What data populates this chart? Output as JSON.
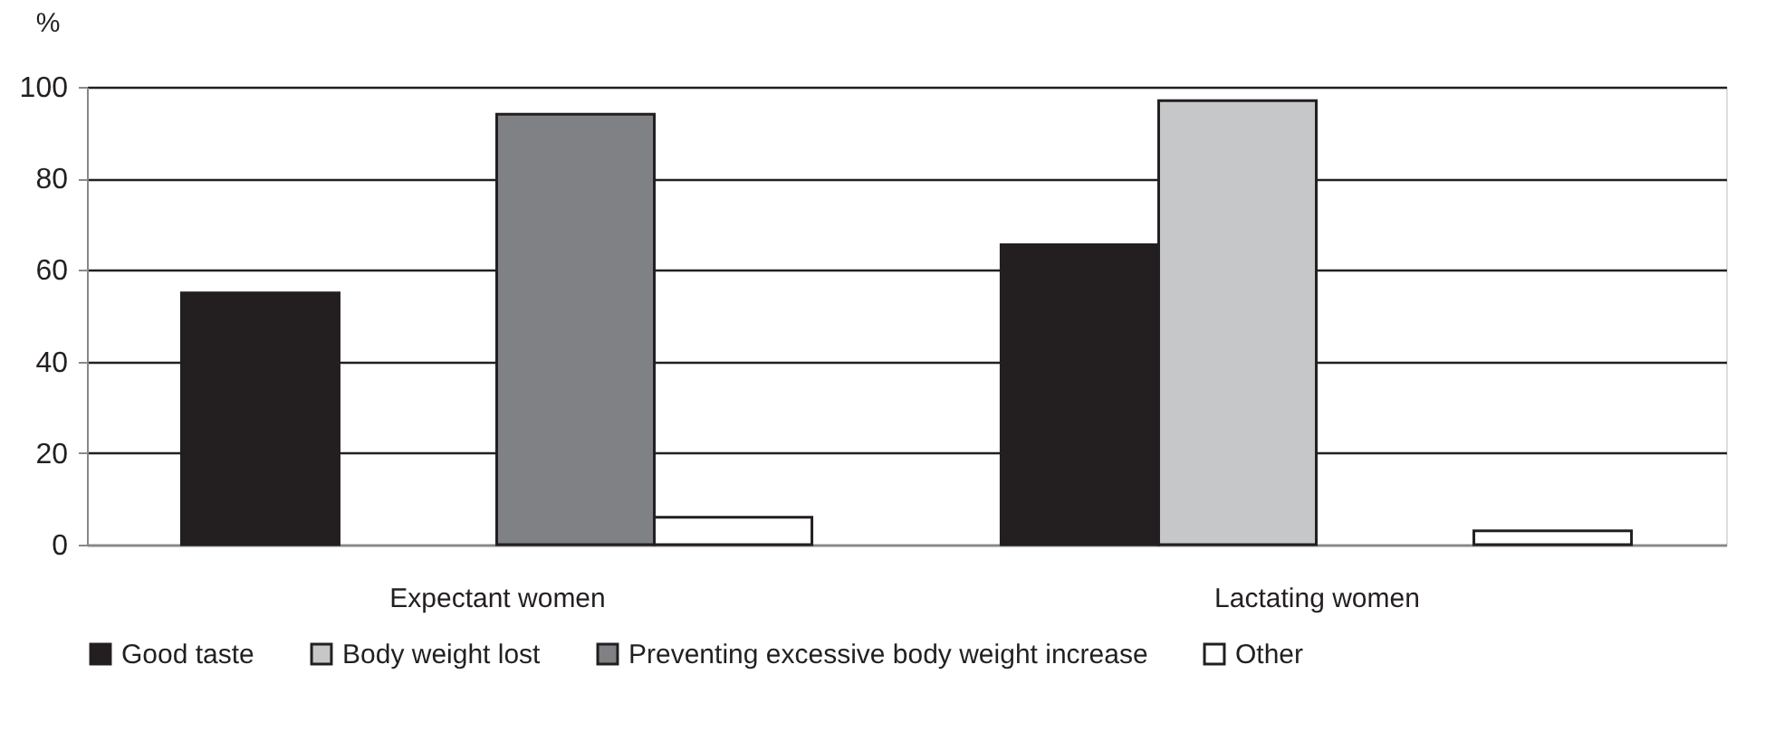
{
  "chart_data": {
    "type": "bar",
    "ylabel": "%",
    "categories": [
      "Expectant women",
      "Lactating women"
    ],
    "series": [
      {
        "name": "Good taste",
        "color": "#231f20",
        "values": [
          55,
          65.5
        ]
      },
      {
        "name": "Body weight lost",
        "color": "#c6c7c9",
        "values": [
          null,
          97
        ]
      },
      {
        "name": "Preventing excessive body weight increase",
        "color": "#808184",
        "values": [
          94,
          null
        ]
      },
      {
        "name": "Other",
        "color": "#ffffff",
        "values": [
          6,
          3
        ]
      }
    ],
    "ylim": [
      0,
      100
    ],
    "yticks": [
      0,
      20,
      40,
      60,
      80,
      100
    ],
    "grid": "y",
    "legend": "bottom"
  }
}
